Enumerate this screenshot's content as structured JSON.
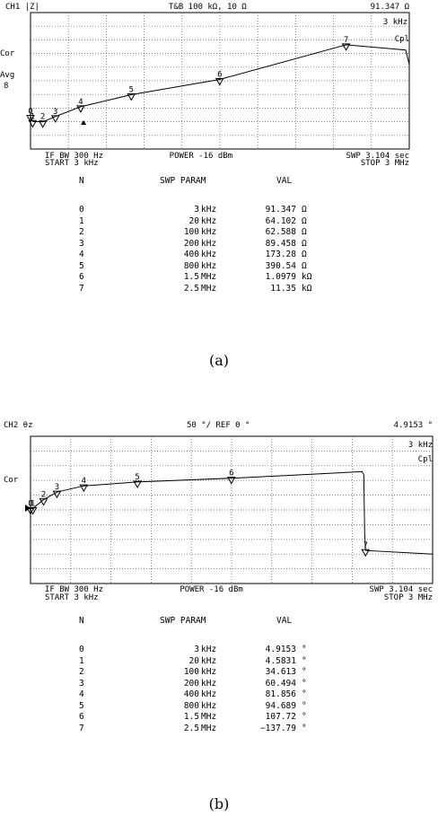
{
  "charts": [
    {
      "id": "a",
      "header": {
        "channel": "CH1 |Z|",
        "scale": "T&B  100 kΩ, 10 Ω",
        "marker_readout": "91.347 Ω"
      },
      "side_labels": [
        "Cor",
        "Avg",
        "8"
      ],
      "corner_labels": [
        "3 kHz",
        "Cpl"
      ],
      "footer": {
        "ifbw": "IF BW  300 Hz",
        "start": "START   3 kHz",
        "power": "POWER -16 dBm",
        "swp": "SWP   3.104 sec",
        "stop": "STOP   3 MHz"
      },
      "table_headers": {
        "n": "N",
        "param": "SWP PARAM",
        "val": "VAL"
      },
      "rows": [
        {
          "n": "0",
          "freq": "3 kHz",
          "val": "91.347 Ω"
        },
        {
          "n": "1",
          "freq": "20 kHz",
          "val": "64.102 Ω"
        },
        {
          "n": "2",
          "freq": "100 kHz",
          "val": "62.588 Ω"
        },
        {
          "n": "3",
          "freq": "200 kHz",
          "val": "89.458 Ω"
        },
        {
          "n": "4",
          "freq": "400 kHz",
          "val": "173.28 Ω"
        },
        {
          "n": "5",
          "freq": "800 kHz",
          "val": "390.54 Ω"
        },
        {
          "n": "6",
          "freq": "1.5 MHz",
          "val": "1.0979 kΩ"
        },
        {
          "n": "7",
          "freq": "2.5 MHz",
          "val": "11.35 kΩ"
        }
      ],
      "caption": "(a)"
    },
    {
      "id": "b",
      "header": {
        "channel": "CH2 θz",
        "scale": "50 °/ REF 0 °",
        "marker_readout": "4.9153 °"
      },
      "side_labels": [
        "Cor"
      ],
      "corner_labels": [
        "3 kHz",
        "Cpl"
      ],
      "footer": {
        "ifbw": "IF BW  300 Hz",
        "start": "START   3 kHz",
        "power": "POWER -16 dBm",
        "swp": "SWP   3.104 sec",
        "stop": "STOP   3 MHz"
      },
      "table_headers": {
        "n": "N",
        "param": "SWP PARAM",
        "val": "VAL"
      },
      "rows": [
        {
          "n": "0",
          "freq": "3 kHz",
          "val": "4.9153 °"
        },
        {
          "n": "1",
          "freq": "20 kHz",
          "val": "4.5831 °"
        },
        {
          "n": "2",
          "freq": "100 kHz",
          "val": "34.613 °"
        },
        {
          "n": "3",
          "freq": "200 kHz",
          "val": "60.494 °"
        },
        {
          "n": "4",
          "freq": "400 kHz",
          "val": "81.856 °"
        },
        {
          "n": "5",
          "freq": "800 kHz",
          "val": "94.689 °"
        },
        {
          "n": "6",
          "freq": "1.5 MHz",
          "val": "107.72 °"
        },
        {
          "n": "7",
          "freq": "2.5 MHz",
          "val": "−137.79 °"
        }
      ],
      "caption": "(b)"
    }
  ],
  "chart_data": [
    {
      "type": "line",
      "title": "CH1 |Z|",
      "x_unit": "Hz",
      "xlim": [
        3000,
        3000000
      ],
      "y_unit": "Ω",
      "y_scale": "log",
      "ylim": [
        10,
        100000
      ],
      "grid": true,
      "markers": [
        {
          "n": 0,
          "x": 3000,
          "y": 91.347
        },
        {
          "n": 1,
          "x": 20000,
          "y": 64.102
        },
        {
          "n": 2,
          "x": 100000,
          "y": 62.588
        },
        {
          "n": 3,
          "x": 200000,
          "y": 89.458
        },
        {
          "n": 4,
          "x": 400000,
          "y": 173.28
        },
        {
          "n": 5,
          "x": 800000,
          "y": 390.54
        },
        {
          "n": 6,
          "x": 1500000,
          "y": 1097.9
        },
        {
          "n": 7,
          "x": 2500000,
          "y": 11350
        }
      ]
    },
    {
      "type": "line",
      "title": "CH2 θz",
      "x_unit": "Hz",
      "xlim": [
        3000,
        3000000
      ],
      "y_unit": "°",
      "ylim": [
        -250,
        250
      ],
      "grid": true,
      "markers": [
        {
          "n": 0,
          "x": 3000,
          "y": 4.9153
        },
        {
          "n": 1,
          "x": 20000,
          "y": 4.5831
        },
        {
          "n": 2,
          "x": 100000,
          "y": 34.613
        },
        {
          "n": 3,
          "x": 200000,
          "y": 60.494
        },
        {
          "n": 4,
          "x": 400000,
          "y": 81.856
        },
        {
          "n": 5,
          "x": 800000,
          "y": 94.689
        },
        {
          "n": 6,
          "x": 1500000,
          "y": 107.72
        },
        {
          "n": 7,
          "x": 2500000,
          "y": -137.79
        }
      ]
    }
  ]
}
